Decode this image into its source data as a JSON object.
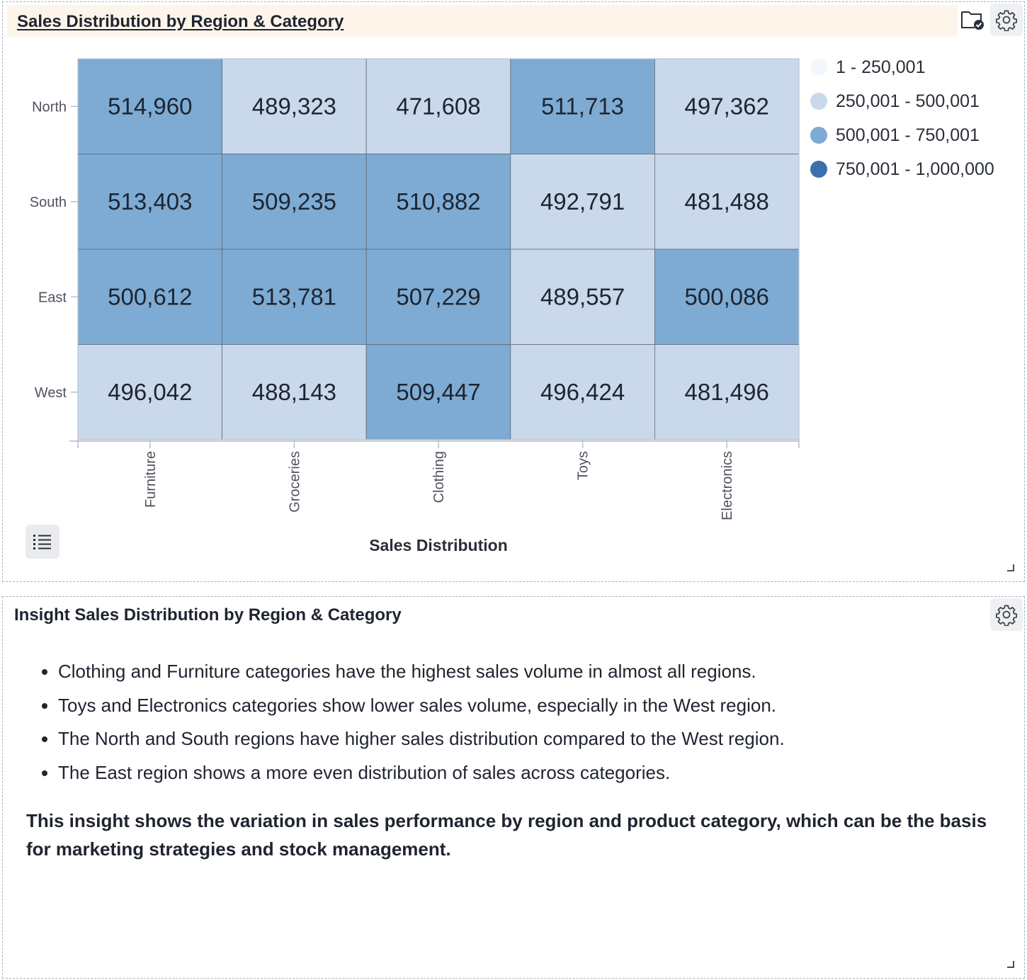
{
  "chart_panel": {
    "title": "Sales Distribution by Region & Category",
    "icons": {
      "saved": "folder-check-icon",
      "settings": "gear-icon",
      "data_list": "list-icon"
    }
  },
  "chart_data": {
    "type": "heatmap",
    "title": "Sales Distribution by Region & Category",
    "xlabel": "Sales Distribution",
    "ylabel": "",
    "x_categories": [
      "Furniture",
      "Groceries",
      "Clothing",
      "Toys",
      "Electronics"
    ],
    "y_categories": [
      "North",
      "South",
      "East",
      "West"
    ],
    "values": [
      [
        514960,
        489323,
        471608,
        511713,
        497362
      ],
      [
        513403,
        509235,
        510882,
        492791,
        481488
      ],
      [
        500612,
        513781,
        507229,
        489557,
        500086
      ],
      [
        496042,
        488143,
        509447,
        496424,
        481496
      ]
    ],
    "legend_position": "right",
    "legend": [
      {
        "label": "1 - 250,001",
        "color": "#f2f7fd",
        "min": 1,
        "max": 250001
      },
      {
        "label": "250,001 - 500,001",
        "color": "#c9d9eb",
        "min": 250001,
        "max": 500001
      },
      {
        "label": "500,001 - 750,001",
        "color": "#7dabd3",
        "min": 500001,
        "max": 750001
      },
      {
        "label": "750,001 - 1,000,000",
        "color": "#3a70ad",
        "min": 750001,
        "max": 1000000
      }
    ]
  },
  "insight_panel": {
    "title": "Insight Sales Distribution by Region & Category",
    "bullets": [
      "Clothing and Furniture categories have the highest sales volume in almost all regions.",
      "Toys and Electronics categories show lower sales volume, especially in the West region.",
      "The North and South regions have higher sales distribution compared to the West region.",
      "The East region shows a more even distribution of sales across categories."
    ],
    "summary": "This insight shows the variation in sales performance by region and product category, which can be the basis for marketing strategies and stock management.",
    "icons": {
      "settings": "gear-icon"
    }
  },
  "colors": {
    "title_bar": "#fdf5ea",
    "panel_border": "#a9b0bd",
    "text": "#1f2430"
  }
}
